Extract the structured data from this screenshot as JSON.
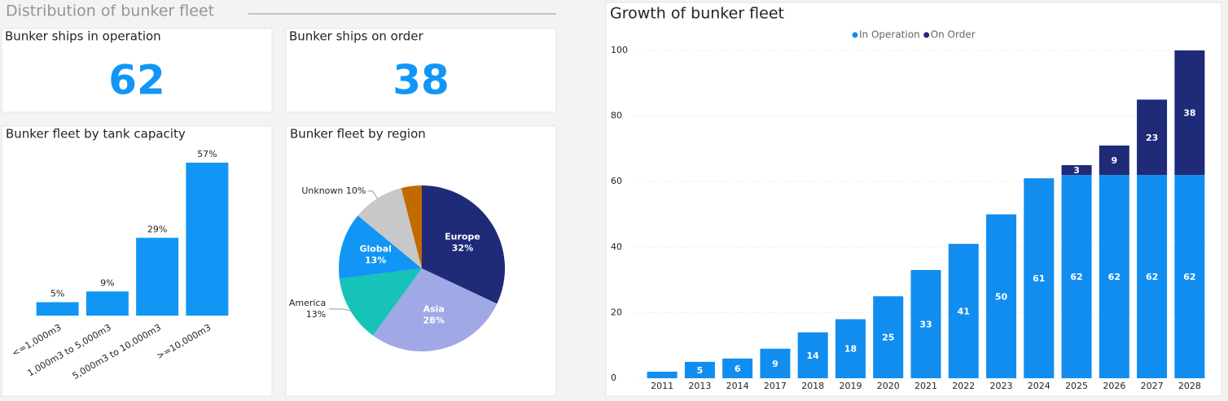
{
  "header": {
    "title": "Distribution of bunker fleet"
  },
  "kpis": [
    {
      "label": "Bunker ships in operation",
      "value": 62
    },
    {
      "label": "Bunker ships on order",
      "value": 38
    }
  ],
  "chart_data": [
    {
      "type": "bar",
      "title": "Bunker fleet by tank capacity",
      "categories": [
        "<=1,000m3",
        "1,000m3 to 5,000m3",
        "5,000m3 to 10,000m3",
        ">=10,000m3"
      ],
      "values": [
        5,
        9,
        29,
        57
      ],
      "value_labels": [
        "5%",
        "9%",
        "29%",
        "57%"
      ],
      "color": "#1196f5"
    },
    {
      "type": "pie",
      "title": "Bunker fleet by region",
      "categories": [
        "Europe",
        "Asia",
        "America",
        "Global",
        "Unknown",
        null
      ],
      "values": [
        32,
        28,
        13,
        13,
        10,
        4
      ],
      "value_labels": [
        "32%",
        "28%",
        "13%",
        "13%",
        "10%",
        null
      ],
      "colors": [
        "#1f2a78",
        "#a0a8e6",
        "#17c3b8",
        "#1196f5",
        "#c8c8c8",
        "#c06a00"
      ]
    },
    {
      "type": "bar",
      "title": "Growth of bunker fleet",
      "categories": [
        "2011",
        "2013",
        "2014",
        "2017",
        "2018",
        "2019",
        "2020",
        "2021",
        "2022",
        "2023",
        "2024",
        "2025",
        "2026",
        "2027",
        "2028"
      ],
      "series": [
        {
          "name": "In Operation",
          "color": "#118df0",
          "values": [
            2,
            5,
            6,
            9,
            14,
            18,
            25,
            33,
            41,
            50,
            61,
            62,
            62,
            62,
            62
          ]
        },
        {
          "name": "On Order",
          "color": "#1f2a78",
          "values": [
            null,
            null,
            null,
            null,
            null,
            null,
            null,
            null,
            null,
            null,
            null,
            3,
            9,
            23,
            38
          ]
        }
      ],
      "ylim": [
        0,
        100
      ],
      "yticks": [
        0,
        20,
        40,
        60,
        80,
        100
      ],
      "grid": true,
      "legend": "top"
    }
  ]
}
